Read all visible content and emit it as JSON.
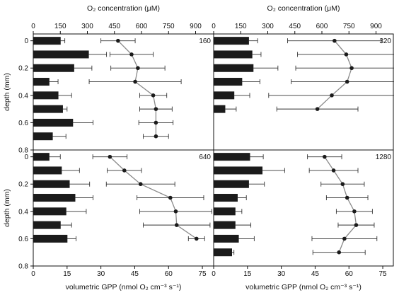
{
  "chart_data": {
    "type": "bar+line",
    "top_axis_label": "O₂ concentration (μM)",
    "left_axis_label": "depth (mm)",
    "bottom_axis_label": "volumetric GPP (nmol O₂ cm⁻³ s⁻¹)",
    "top_ticks": [
      "0",
      "150",
      "300",
      "450",
      "600",
      "750",
      "900"
    ],
    "bottom_ticks": [
      "0",
      "15",
      "30",
      "45",
      "60",
      "75"
    ],
    "depth_ticks": [
      "0",
      "0.2",
      "0.4",
      "0.6",
      "0.8"
    ],
    "xlim_gpp": [
      0,
      80
    ],
    "xlim_o2": [
      0,
      1000
    ],
    "ylim_depth": [
      -0.05,
      0.8
    ],
    "panels": [
      {
        "label": "160",
        "bars": [
          {
            "depth": 0.0,
            "value": 12,
            "err": 2
          },
          {
            "depth": 0.1,
            "value": 24.5,
            "err": 8
          },
          {
            "depth": 0.2,
            "value": 18,
            "err": 8
          },
          {
            "depth": 0.3,
            "value": 7,
            "err": 4
          },
          {
            "depth": 0.4,
            "value": 11,
            "err": 6
          },
          {
            "depth": 0.5,
            "value": 13,
            "err": 2
          },
          {
            "depth": 0.6,
            "value": 17.5,
            "err": 9
          },
          {
            "depth": 0.7,
            "value": 8.5,
            "err": 6
          }
        ],
        "o2": [
          {
            "depth": 0.0,
            "value": 470,
            "err": 95
          },
          {
            "depth": 0.1,
            "value": 545,
            "err": 120
          },
          {
            "depth": 0.2,
            "value": 580,
            "err": 150
          },
          {
            "depth": 0.3,
            "value": 565,
            "err": 255
          },
          {
            "depth": 0.4,
            "value": 665,
            "err": 75
          },
          {
            "depth": 0.5,
            "value": 680,
            "err": 90
          },
          {
            "depth": 0.6,
            "value": 680,
            "err": 95
          },
          {
            "depth": 0.7,
            "value": 680,
            "err": 70
          }
        ]
      },
      {
        "label": "320",
        "bars": [
          {
            "depth": 0.0,
            "value": 15.5,
            "err": 4
          },
          {
            "depth": 0.1,
            "value": 17,
            "err": 4
          },
          {
            "depth": 0.2,
            "value": 17.5,
            "err": 11
          },
          {
            "depth": 0.3,
            "value": 12.5,
            "err": 8
          },
          {
            "depth": 0.4,
            "value": 9,
            "err": 7
          },
          {
            "depth": 0.5,
            "value": 5,
            "err": 5
          }
        ],
        "o2": [
          {
            "depth": 0.0,
            "value": 670,
            "err": 260
          },
          {
            "depth": 0.1,
            "value": 735,
            "err": 270
          },
          {
            "depth": 0.2,
            "value": 765,
            "err": 310
          },
          {
            "depth": 0.3,
            "value": 740,
            "err": 310
          },
          {
            "depth": 0.4,
            "value": 655,
            "err": 350
          },
          {
            "depth": 0.5,
            "value": 575,
            "err": 225
          }
        ]
      },
      {
        "label": "640",
        "bars": [
          {
            "depth": 0.0,
            "value": 7,
            "err": 5
          },
          {
            "depth": 0.1,
            "value": 12.5,
            "err": 8
          },
          {
            "depth": 0.2,
            "value": 16,
            "err": 9
          },
          {
            "depth": 0.3,
            "value": 18.5,
            "err": 8
          },
          {
            "depth": 0.4,
            "value": 14.5,
            "err": 9
          },
          {
            "depth": 0.5,
            "value": 12,
            "err": 5
          },
          {
            "depth": 0.6,
            "value": 15,
            "err": 4
          }
        ],
        "o2": [
          {
            "depth": 0.0,
            "value": 425,
            "err": 95
          },
          {
            "depth": 0.1,
            "value": 505,
            "err": 95
          },
          {
            "depth": 0.2,
            "value": 595,
            "err": 190
          },
          {
            "depth": 0.3,
            "value": 760,
            "err": 185
          },
          {
            "depth": 0.4,
            "value": 790,
            "err": 200
          },
          {
            "depth": 0.5,
            "value": 795,
            "err": 185
          },
          {
            "depth": 0.6,
            "value": 905,
            "err": 45
          }
        ]
      },
      {
        "label": "1280",
        "bars": [
          {
            "depth": 0.0,
            "value": 16,
            "err": 6
          },
          {
            "depth": 0.1,
            "value": 21.5,
            "err": 10
          },
          {
            "depth": 0.2,
            "value": 15.5,
            "err": 7
          },
          {
            "depth": 0.3,
            "value": 10.5,
            "err": 4
          },
          {
            "depth": 0.4,
            "value": 9.5,
            "err": 3
          },
          {
            "depth": 0.5,
            "value": 9.5,
            "err": 7
          },
          {
            "depth": 0.6,
            "value": 11,
            "err": 7
          },
          {
            "depth": 0.7,
            "value": 8,
            "err": 1
          }
        ],
        "o2": [
          {
            "depth": 0.0,
            "value": 615,
            "err": 95
          },
          {
            "depth": 0.1,
            "value": 665,
            "err": 135
          },
          {
            "depth": 0.2,
            "value": 715,
            "err": 120
          },
          {
            "depth": 0.3,
            "value": 740,
            "err": 115
          },
          {
            "depth": 0.4,
            "value": 780,
            "err": 100
          },
          {
            "depth": 0.5,
            "value": 790,
            "err": 100
          },
          {
            "depth": 0.6,
            "value": 725,
            "err": 180
          },
          {
            "depth": 0.7,
            "value": 695,
            "err": 145
          }
        ]
      }
    ]
  }
}
